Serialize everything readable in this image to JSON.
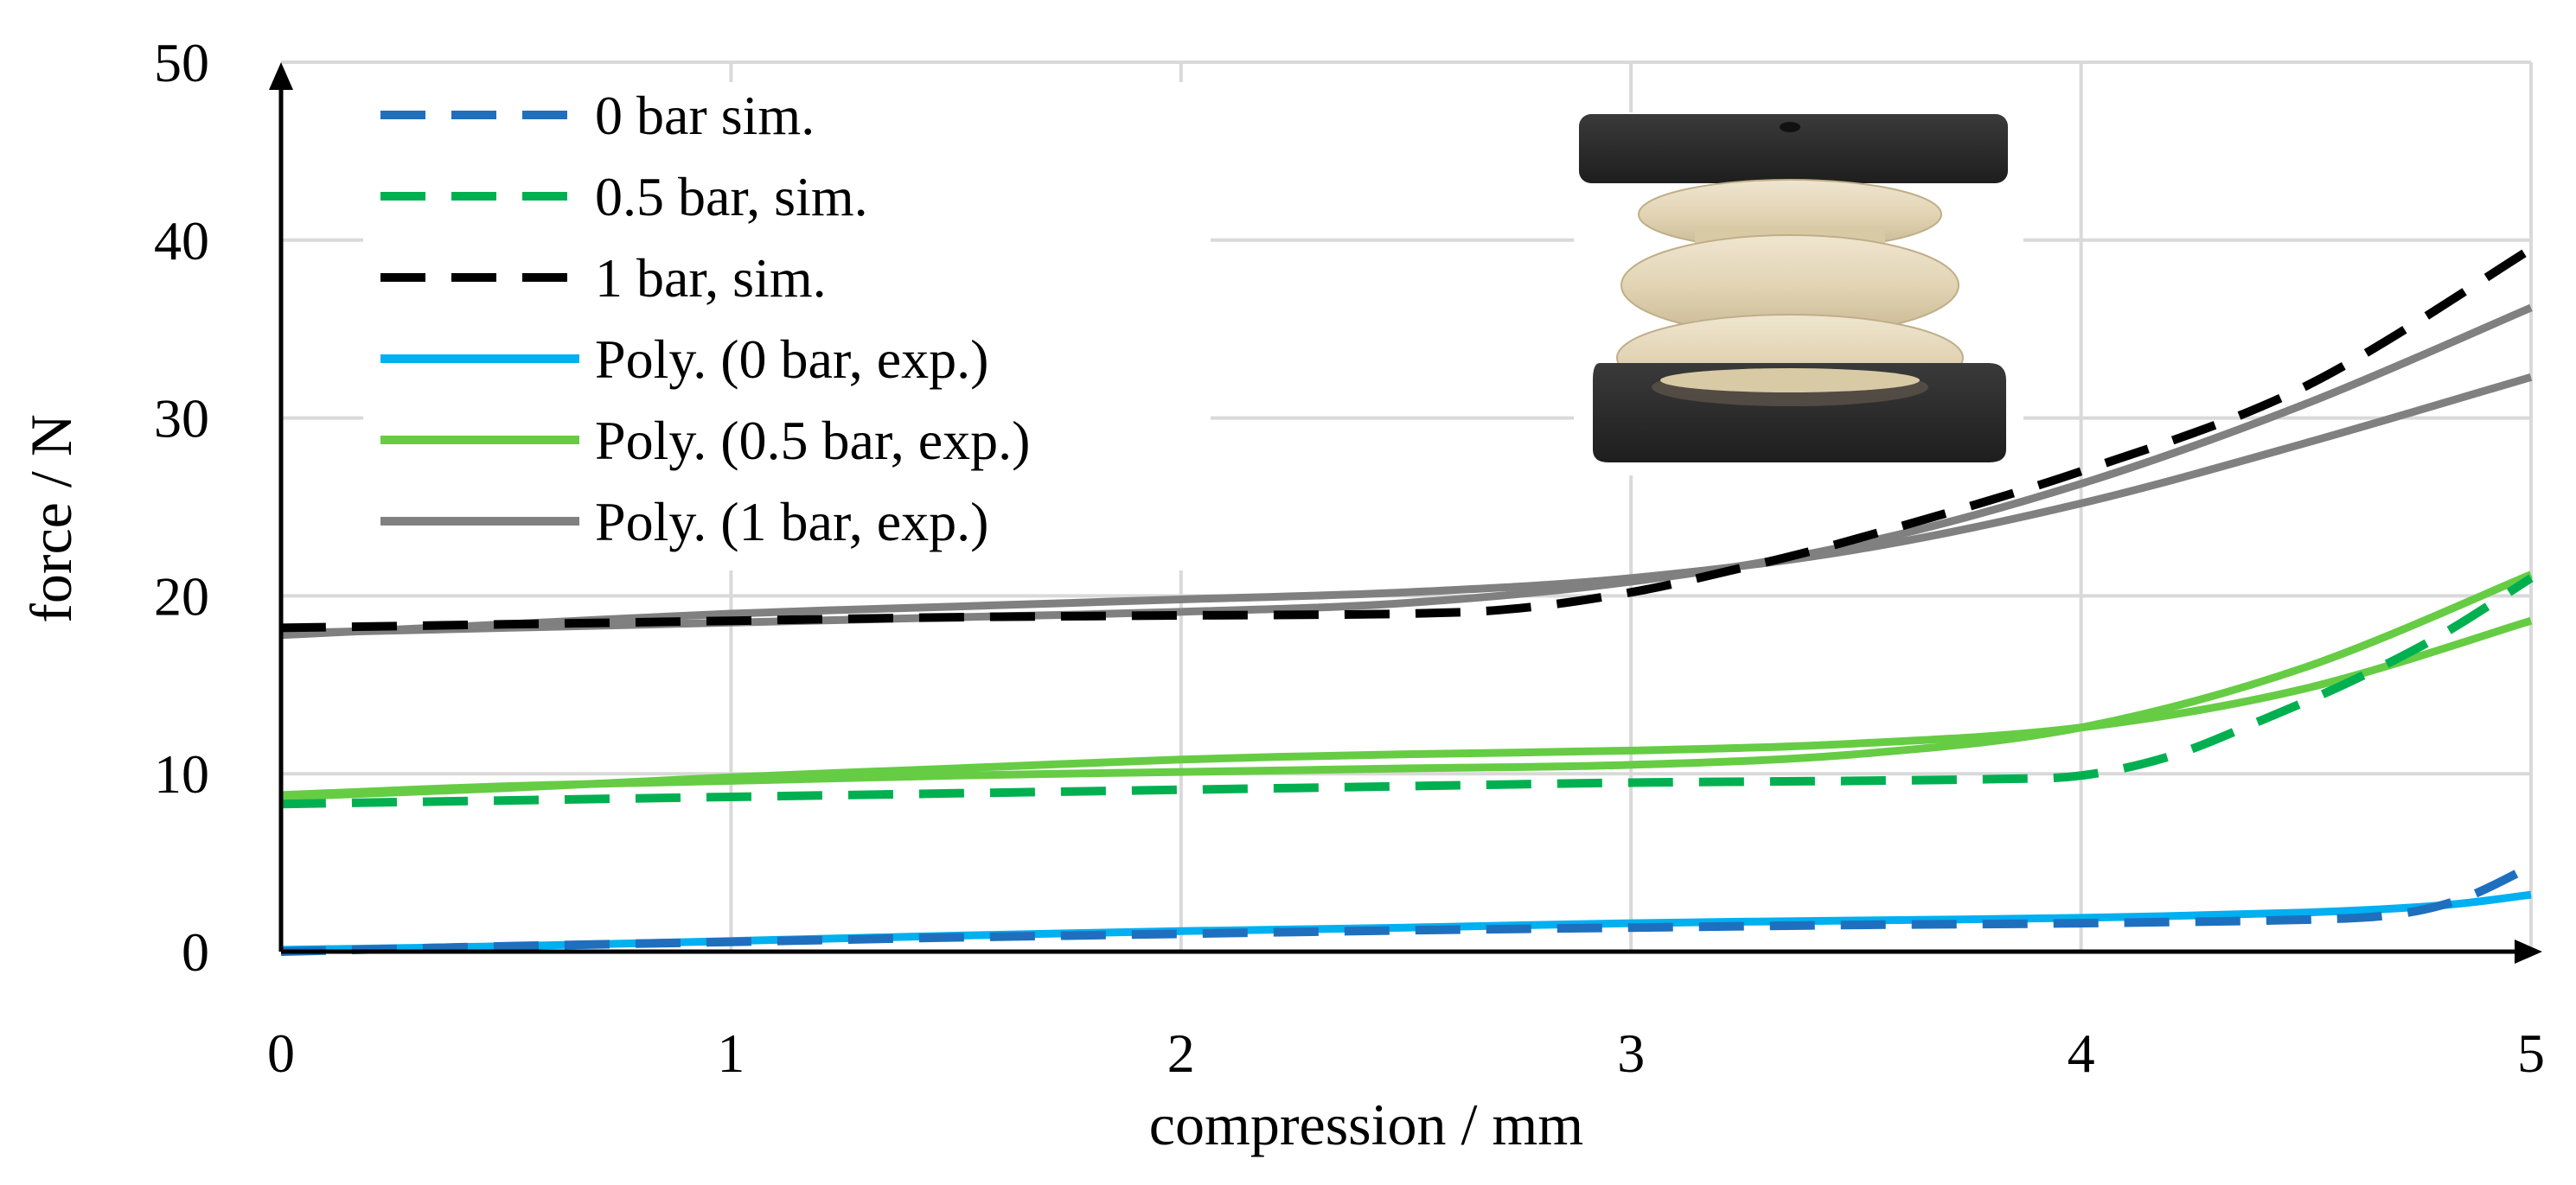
{
  "chart_data": {
    "type": "line",
    "title": "",
    "xlabel": "compression / mm",
    "ylabel": "force / N",
    "xlim": [
      0,
      5
    ],
    "ylim": [
      0,
      50
    ],
    "x_ticks": [
      "0",
      "1",
      "2",
      "3",
      "4",
      "5"
    ],
    "y_ticks": [
      "0",
      "10",
      "20",
      "30",
      "40",
      "50"
    ],
    "grid": true,
    "legend_position": "top-left",
    "inset_image": "photo-of-bellows-actuator-sample",
    "series": [
      {
        "name": "0 bar sim.",
        "style": "dashed",
        "color": "#1F6FBF",
        "points": [
          [
            0,
            0
          ],
          [
            0.5,
            0.3
          ],
          [
            1,
            0.55
          ],
          [
            1.5,
            0.8
          ],
          [
            2,
            1.0
          ],
          [
            2.5,
            1.2
          ],
          [
            3,
            1.35
          ],
          [
            3.5,
            1.5
          ],
          [
            4,
            1.6
          ],
          [
            4.5,
            1.8
          ],
          [
            4.7,
            2.1
          ],
          [
            4.85,
            3.0
          ],
          [
            5,
            4.8
          ]
        ]
      },
      {
        "name": "0.5 bar, sim.",
        "style": "dashed",
        "color": "#00B050",
        "points": [
          [
            0,
            8.3
          ],
          [
            0.5,
            8.5
          ],
          [
            1,
            8.7
          ],
          [
            1.5,
            8.9
          ],
          [
            2,
            9.1
          ],
          [
            2.5,
            9.3
          ],
          [
            3,
            9.5
          ],
          [
            3.5,
            9.6
          ],
          [
            3.8,
            9.7
          ],
          [
            4,
            9.9
          ],
          [
            4.2,
            11.0
          ],
          [
            4.4,
            13.0
          ],
          [
            4.6,
            15.2
          ],
          [
            4.8,
            17.8
          ],
          [
            5,
            21.0
          ]
        ]
      },
      {
        "name": "1 bar, sim.",
        "style": "dashed",
        "color": "#000000",
        "points": [
          [
            0,
            18.2
          ],
          [
            0.5,
            18.4
          ],
          [
            1,
            18.6
          ],
          [
            1.5,
            18.8
          ],
          [
            2,
            18.9
          ],
          [
            2.5,
            19.0
          ],
          [
            2.75,
            19.3
          ],
          [
            3,
            20.2
          ],
          [
            3.2,
            21.3
          ],
          [
            3.5,
            23.2
          ],
          [
            4,
            27.0
          ],
          [
            4.5,
            31.8
          ],
          [
            5,
            39.5
          ]
        ]
      },
      {
        "name": "Poly. (0 bar, exp.)",
        "style": "solid",
        "color": "#00B0F0",
        "points": [
          [
            0,
            0.1
          ],
          [
            0.5,
            0.3
          ],
          [
            1,
            0.6
          ],
          [
            1.5,
            0.9
          ],
          [
            2,
            1.15
          ],
          [
            2.5,
            1.35
          ],
          [
            3,
            1.6
          ],
          [
            3.5,
            1.75
          ],
          [
            4,
            1.9
          ],
          [
            4.5,
            2.2
          ],
          [
            4.8,
            2.6
          ],
          [
            5,
            3.2
          ]
        ]
      },
      {
        "name": "Poly. (0.5 bar, exp.)",
        "style": "solid",
        "color": "#66CC44",
        "points": [
          [
            0,
            8.7
          ],
          [
            0.5,
            9.2
          ],
          [
            1,
            9.8
          ],
          [
            1.5,
            10.3
          ],
          [
            2,
            10.8
          ],
          [
            2.5,
            11.1
          ],
          [
            3,
            11.3
          ],
          [
            3.5,
            11.7
          ],
          [
            4,
            12.6
          ],
          [
            4.5,
            14.8
          ],
          [
            5,
            18.6
          ]
        ]
      },
      {
        "name": "Poly. (0.5 bar, exp.)",
        "style": "solid",
        "color": "#66CC44",
        "points": [
          [
            0,
            8.8
          ],
          [
            0.5,
            9.3
          ],
          [
            1,
            9.6
          ],
          [
            1.5,
            9.9
          ],
          [
            2,
            10.1
          ],
          [
            2.5,
            10.3
          ],
          [
            3,
            10.5
          ],
          [
            3.5,
            11.1
          ],
          [
            4,
            12.6
          ],
          [
            4.5,
            16.0
          ],
          [
            5,
            21.2
          ]
        ]
      },
      {
        "name": "Poly. (1 bar, exp.)",
        "style": "solid",
        "color": "#808080",
        "points": [
          [
            0,
            17.8
          ],
          [
            0.5,
            18.4
          ],
          [
            1,
            19.0
          ],
          [
            1.5,
            19.4
          ],
          [
            2,
            19.8
          ],
          [
            2.5,
            20.2
          ],
          [
            3,
            21.0
          ],
          [
            3.5,
            22.6
          ],
          [
            4,
            25.2
          ],
          [
            4.5,
            28.6
          ],
          [
            5,
            32.3
          ]
        ]
      },
      {
        "name": "Poly. (1 bar, exp.)",
        "style": "solid",
        "color": "#808080",
        "points": [
          [
            0,
            17.9
          ],
          [
            0.5,
            18.2
          ],
          [
            1,
            18.5
          ],
          [
            1.5,
            18.8
          ],
          [
            2,
            19.1
          ],
          [
            2.5,
            19.6
          ],
          [
            3,
            20.8
          ],
          [
            3.5,
            22.9
          ],
          [
            4,
            26.3
          ],
          [
            4.5,
            30.8
          ],
          [
            5,
            36.2
          ]
        ]
      }
    ],
    "legend": [
      {
        "label": "0 bar sim.",
        "color": "#1F6FBF",
        "style": "dashed"
      },
      {
        "label": "0.5 bar, sim.",
        "color": "#00B050",
        "style": "dashed"
      },
      {
        "label": "1 bar, sim.",
        "color": "#000000",
        "style": "dashed"
      },
      {
        "label": "Poly. (0 bar, exp.)",
        "color": "#00B0F0",
        "style": "solid"
      },
      {
        "label": "Poly. (0.5 bar, exp.)",
        "color": "#66CC44",
        "style": "solid"
      },
      {
        "label": "Poly. (1 bar, exp.)",
        "color": "#808080",
        "style": "solid"
      }
    ]
  }
}
